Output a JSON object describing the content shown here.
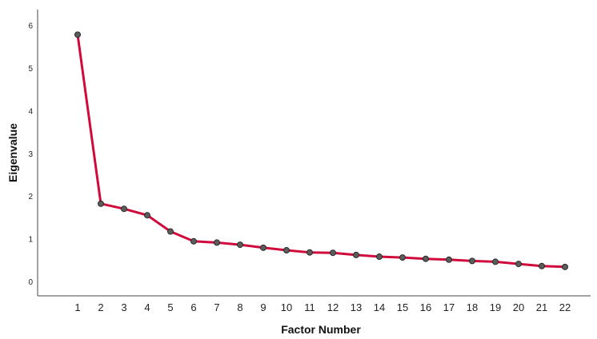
{
  "chart_data": {
    "type": "line",
    "title": "",
    "xlabel": "Factor Number",
    "ylabel": "Eigenvalue",
    "x": [
      1,
      2,
      3,
      4,
      5,
      6,
      7,
      8,
      9,
      10,
      11,
      12,
      13,
      14,
      15,
      16,
      17,
      18,
      19,
      20,
      21,
      22
    ],
    "series": [
      {
        "name": "",
        "values": [
          5.78,
          1.82,
          1.7,
          1.55,
          1.17,
          0.94,
          0.91,
          0.86,
          0.79,
          0.73,
          0.68,
          0.67,
          0.62,
          0.58,
          0.56,
          0.53,
          0.51,
          0.48,
          0.46,
          0.41,
          0.36,
          0.34
        ]
      }
    ],
    "x_ticks": [
      "1",
      "2",
      "3",
      "4",
      "5",
      "6",
      "7",
      "8",
      "9",
      "10",
      "11",
      "12",
      "13",
      "14",
      "15",
      "16",
      "17",
      "18",
      "19",
      "20",
      "21",
      "22"
    ],
    "y_ticks": [
      "0",
      "1",
      "2",
      "3",
      "4",
      "5",
      "6"
    ],
    "ylim": [
      -0.35,
      6.4
    ],
    "grid": false,
    "legend": "none",
    "colors": {
      "line": "#d10a3c",
      "marker": "#5c5c5c",
      "axis": "#444444"
    }
  }
}
